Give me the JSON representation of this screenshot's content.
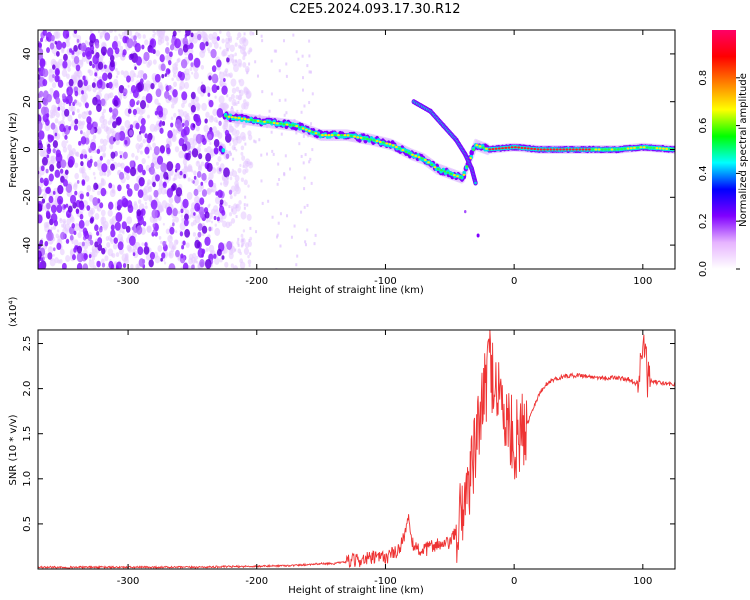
{
  "page_title": "C2E5.2024.093.17.30.R12",
  "colors": {
    "axis": "#000000",
    "snr_line": "#ee3333",
    "spectrogram_ridge": "#9933ff"
  },
  "chart_data": [
    {
      "type": "heatmap",
      "title": "C2E5.2024.093.17.30.R12",
      "xlabel": "Height of straight line (km)",
      "ylabel": "Frequency (Hz)",
      "xlim": [
        -370,
        125
      ],
      "ylim": [
        -50,
        50
      ],
      "xticks": [
        -300,
        -200,
        -100,
        0,
        100
      ],
      "yticks": [
        -40,
        -20,
        0,
        20,
        40
      ],
      "colorbar": {
        "label": "Normalized spectral amplitude",
        "range": [
          0.0,
          1.0
        ],
        "ticks": [
          "0.0",
          "0.2",
          "0.4",
          "0.6",
          "0.8"
        ],
        "colormap": [
          "#ffffff",
          "#e6b3ff",
          "#8000ff",
          "#0000ff",
          "#00ffff",
          "#00ff00",
          "#ffff00",
          "#ff8000",
          "#ff0000",
          "#ff0066"
        ]
      },
      "ridge": {
        "x": [
          -225,
          -200,
          -170,
          -150,
          -130,
          -110,
          -95,
          -80,
          -70,
          -60,
          -50,
          -40,
          -30,
          -20,
          0,
          20,
          50,
          80,
          100,
          125
        ],
        "y": [
          14,
          12,
          10,
          6,
          6,
          4,
          2,
          -2,
          -4,
          -8,
          -10,
          -12,
          2,
          0,
          1,
          0,
          0,
          0,
          1,
          0
        ]
      },
      "noise_region": [
        -370,
        -220
      ]
    },
    {
      "type": "line",
      "xlabel": "Height of straight line (km)",
      "ylabel": "SNR (10 * v/v)",
      "y_multiplier": "(x10⁴)",
      "xlim": [
        -370,
        125
      ],
      "ylim": [
        0,
        2.65
      ],
      "xticks": [
        -300,
        -200,
        -100,
        0,
        100
      ],
      "yticks": [
        0.5,
        1.0,
        1.5,
        2.0,
        2.5
      ],
      "yticklabels": [
        "0.5",
        "1.0",
        "1.5",
        "2.0",
        "2.5"
      ],
      "series": [
        {
          "x": [
            -370,
            -300,
            -250,
            -200,
            -170,
            -160,
            -150,
            -140,
            -130,
            -120,
            -110,
            -100,
            -90,
            -85,
            -82,
            -80,
            -75,
            -70,
            -65,
            -60,
            -55,
            -50,
            -45,
            -42,
            -40,
            -35,
            -30,
            -28,
            -25,
            -22,
            -20,
            -18,
            -15,
            -12,
            -10,
            -5,
            0,
            5,
            10,
            15,
            20,
            25,
            30,
            35,
            40,
            50,
            60,
            70,
            80,
            90,
            95,
            98,
            100,
            102,
            104,
            106,
            110,
            115,
            120,
            125
          ],
          "y": [
            0.02,
            0.02,
            0.02,
            0.03,
            0.04,
            0.05,
            0.06,
            0.06,
            0.08,
            0.1,
            0.12,
            0.13,
            0.2,
            0.4,
            0.55,
            0.3,
            0.22,
            0.2,
            0.25,
            0.28,
            0.25,
            0.3,
            0.4,
            0.55,
            0.7,
            1.0,
            1.3,
            1.6,
            1.8,
            2.0,
            2.4,
            2.2,
            2.1,
            2.0,
            1.8,
            1.6,
            1.4,
            1.5,
            1.6,
            1.8,
            1.95,
            2.05,
            2.1,
            2.12,
            2.14,
            2.15,
            2.13,
            2.12,
            2.12,
            2.1,
            2.05,
            2.2,
            2.55,
            2.3,
            2.1,
            2.08,
            2.07,
            2.06,
            2.05,
            2.05
          ]
        }
      ]
    }
  ]
}
